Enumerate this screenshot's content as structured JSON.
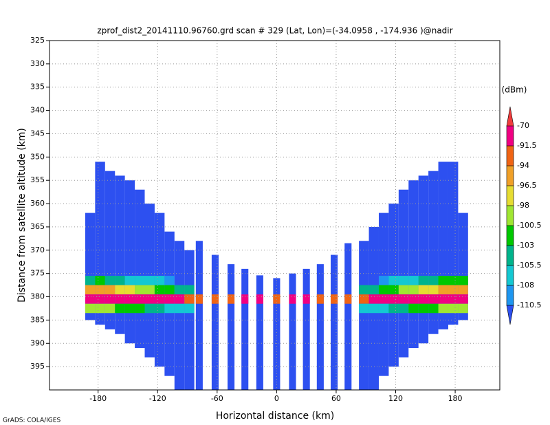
{
  "chart_data": {
    "type": "profile",
    "title": "zprof_dist2_20141110.96760.grd  scan # 329  (Lat, Lon)=(-34.0958 , -174.936 )@nadir",
    "xlabel": "Horizontal distance (km)",
    "ylabel": "Distance from satellite altitude (km)",
    "footer": "GrADS: COLA/IGES",
    "xlim": [
      -229,
      225
    ],
    "ylim": [
      325,
      400
    ],
    "y_inverted": true,
    "xticks": [
      -180,
      -120,
      -60,
      0,
      60,
      120,
      180
    ],
    "yticks": [
      325,
      330,
      335,
      340,
      345,
      350,
      355,
      360,
      365,
      370,
      375,
      380,
      385,
      390,
      395
    ],
    "grid": true,
    "columns": {
      "x": [
        -188,
        -178,
        -168,
        -158,
        -148,
        -138,
        -128,
        -118,
        -108,
        -98,
        -88,
        -78,
        -62,
        -46,
        -32,
        -17,
        0,
        16,
        30,
        44,
        58,
        72,
        88,
        98,
        108,
        118,
        128,
        138,
        148,
        158,
        168,
        178,
        188
      ],
      "width": [
        10,
        10,
        10,
        10,
        10,
        10,
        10,
        10,
        10,
        10,
        10,
        7,
        7,
        7,
        7,
        7,
        7,
        7,
        7,
        7,
        7,
        7,
        10,
        10,
        10,
        10,
        10,
        10,
        10,
        10,
        10,
        10,
        10
      ],
      "top": [
        362,
        351,
        353,
        354,
        355,
        357,
        360,
        362,
        366,
        368,
        370,
        368,
        371,
        373,
        374,
        375.4,
        376,
        375,
        374,
        373,
        371,
        368.5,
        368,
        365,
        362,
        360,
        357,
        355,
        354,
        353,
        351,
        351,
        362
      ],
      "bottom": [
        385,
        386,
        387,
        388,
        390,
        391,
        393,
        395,
        397,
        400,
        400,
        400,
        400,
        400,
        400,
        400,
        400,
        400,
        400,
        400,
        400,
        400,
        400,
        400,
        397,
        395,
        393,
        391,
        390,
        388,
        387,
        386,
        385
      ],
      "value": [
        -112,
        -112,
        -112,
        -112,
        -112,
        -112,
        -112,
        -112,
        -112,
        -112,
        -112,
        -112,
        -112,
        -112,
        -112,
        -112,
        -112,
        -112,
        -112,
        -112,
        -112,
        -112,
        -112,
        -112,
        -112,
        -112,
        -112,
        -112,
        -112,
        -112,
        -112,
        -112,
        -112
      ]
    },
    "bright_band": {
      "altitude": [
        376.5,
        378.5,
        380.5,
        382.5
      ],
      "values": [
        [
          -104,
          -103,
          -104,
          -105,
          -106,
          -106,
          -107,
          -108,
          -109,
          null,
          null,
          null,
          null,
          null,
          null,
          null,
          null,
          null,
          null,
          null,
          null,
          null,
          null,
          null,
          -109,
          -108,
          -107,
          -106,
          -105,
          -104,
          -103,
          -102,
          -103
        ],
        [
          -96,
          -95,
          -96,
          -97,
          -98,
          -99,
          -100,
          -101,
          -103,
          -104,
          -105,
          null,
          null,
          null,
          null,
          null,
          null,
          null,
          null,
          null,
          null,
          null,
          -105,
          -104,
          -103,
          -101,
          -100,
          -99,
          -98,
          -97,
          -96,
          -95,
          -96
        ],
        [
          -85,
          -84,
          -84,
          -85,
          -86,
          -87,
          -88,
          -89,
          -90,
          -91,
          -92,
          -93,
          -92,
          -92,
          -91,
          -91,
          -92,
          -91,
          -91,
          -92,
          -92,
          -93,
          -92,
          -91,
          -90,
          -89,
          -88,
          -87,
          -86,
          -85,
          -84,
          -84,
          -85
        ],
        [
          -100,
          -99,
          -100,
          -101,
          -102,
          -103,
          -104,
          -105,
          -106,
          -107,
          -108,
          null,
          null,
          null,
          null,
          null,
          null,
          null,
          null,
          null,
          null,
          null,
          -108,
          -107,
          -106,
          -105,
          -104,
          -103,
          -102,
          -101,
          -100,
          -99,
          -100
        ]
      ]
    },
    "colorbar": {
      "label": "(dBm)",
      "levels": [
        -110.5,
        -108,
        -105.5,
        -103,
        -100.5,
        -98,
        -96.5,
        -94,
        -91.5,
        -70
      ],
      "colors": [
        "#2d50f0",
        "#1e96f0",
        "#14c8d2",
        "#00b48c",
        "#00c800",
        "#a0e632",
        "#e6dc32",
        "#f0a028",
        "#f06414",
        "#f00082",
        "#f03c3c"
      ]
    }
  }
}
